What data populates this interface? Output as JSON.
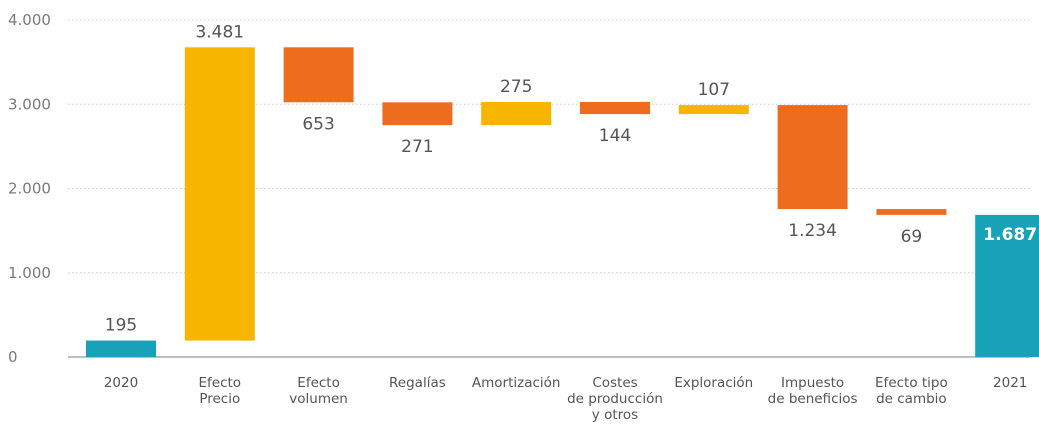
{
  "chart_data": {
    "type": "bar",
    "subtype": "waterfall",
    "title": "",
    "xlabel": "",
    "ylabel": "",
    "ylim": [
      0,
      4000
    ],
    "yticks": [
      0,
      1000,
      2000,
      3000,
      4000
    ],
    "ytick_labels": [
      "0",
      "1.000",
      "2.000",
      "3.000",
      "4.000"
    ],
    "grid": "horizontal",
    "colors": {
      "total": "#17a2b8",
      "increase": "#f7b500",
      "decrease": "#ee6c1e",
      "grid": "#cccccc",
      "axis": "#999999"
    },
    "bars": [
      {
        "category": [
          "2020"
        ],
        "kind": "total",
        "start": 0,
        "end": 195,
        "label": "195",
        "label_pos": "above"
      },
      {
        "category": [
          "Efecto",
          "Precio"
        ],
        "kind": "increase",
        "start": 195,
        "end": 3676,
        "label": "3.481",
        "label_pos": "above"
      },
      {
        "category": [
          "Efecto",
          "volumen"
        ],
        "kind": "decrease",
        "start": 3676,
        "end": 3023,
        "label": "653",
        "label_pos": "below"
      },
      {
        "category": [
          "Regalías"
        ],
        "kind": "decrease",
        "start": 3023,
        "end": 2752,
        "label": "271",
        "label_pos": "below"
      },
      {
        "category": [
          "Amortización"
        ],
        "kind": "increase",
        "start": 2752,
        "end": 3027,
        "label": "275",
        "label_pos": "above"
      },
      {
        "category": [
          "Costes",
          "de producción",
          "y otros"
        ],
        "kind": "decrease",
        "start": 3027,
        "end": 2883,
        "label": "144",
        "label_pos": "below"
      },
      {
        "category": [
          "Exploración"
        ],
        "kind": "increase",
        "start": 2883,
        "end": 2990,
        "label": "107",
        "label_pos": "above"
      },
      {
        "category": [
          "Impuesto",
          "de beneficios"
        ],
        "kind": "decrease",
        "start": 2990,
        "end": 1756,
        "label": "1.234",
        "label_pos": "below"
      },
      {
        "category": [
          "Efecto tipo",
          "de cambio"
        ],
        "kind": "decrease",
        "start": 1756,
        "end": 1687,
        "label": "69",
        "label_pos": "below"
      },
      {
        "category": [
          "2021"
        ],
        "kind": "total",
        "start": 0,
        "end": 1687,
        "label": "1.687",
        "label_pos": "inside-top"
      }
    ]
  }
}
